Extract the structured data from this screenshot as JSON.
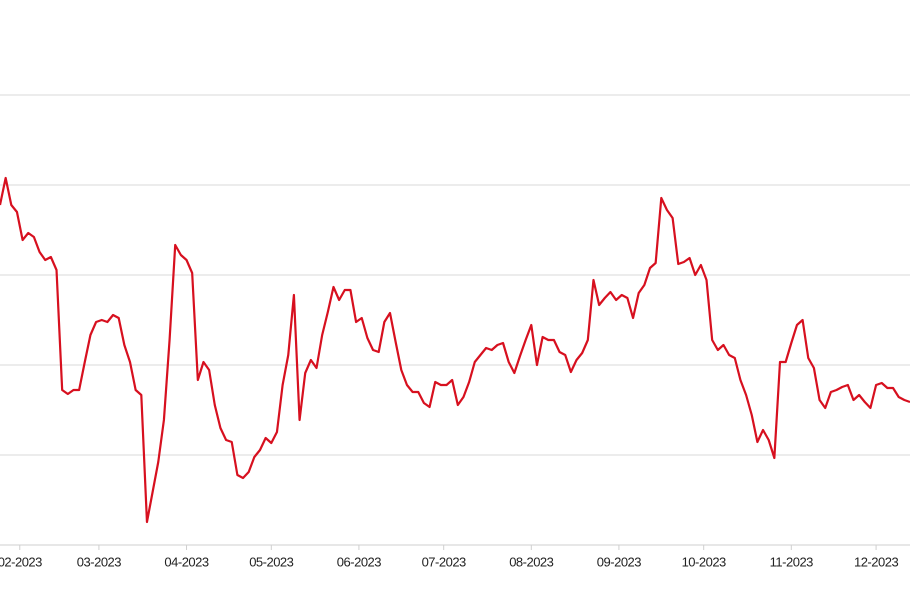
{
  "chart_data": {
    "type": "line",
    "x": [
      25,
      27,
      29,
      31,
      33,
      35,
      37,
      39,
      41,
      43,
      45,
      47,
      49,
      51,
      53,
      55,
      57,
      59,
      61,
      63,
      65,
      67,
      69,
      71,
      73,
      75,
      77,
      79,
      81,
      83,
      85,
      87,
      89,
      91,
      93,
      95,
      97,
      99,
      101,
      103,
      105,
      107,
      109,
      111,
      113,
      115,
      117,
      119,
      121,
      123,
      125,
      127,
      129,
      131,
      133,
      135,
      137,
      139,
      141,
      143,
      145,
      147,
      149,
      151,
      153,
      155,
      157,
      159,
      161,
      163,
      165,
      167,
      169,
      171,
      173,
      175,
      177,
      179,
      181,
      183,
      185,
      187,
      189,
      191,
      193,
      195,
      197,
      199,
      201,
      203,
      205,
      207,
      209,
      211,
      213,
      215,
      217,
      219,
      221,
      223,
      225,
      227,
      229,
      231,
      233,
      235,
      237,
      239,
      241,
      243,
      245,
      247,
      249,
      251,
      253,
      255,
      257,
      259,
      261,
      263,
      265,
      267,
      269,
      271,
      273,
      275,
      277,
      279,
      281,
      283,
      285,
      287,
      289,
      291,
      293,
      295,
      297,
      299,
      301,
      303,
      305,
      307,
      309,
      311,
      313,
      315,
      317,
      319,
      321,
      323,
      325,
      327,
      329,
      331,
      333,
      335,
      337,
      339,
      341,
      343,
      345,
      347
    ],
    "values": [
      340,
      367,
      340,
      333,
      305,
      312,
      308,
      293,
      285,
      288,
      275,
      155,
      151,
      155,
      155,
      183,
      210,
      223,
      225,
      223,
      230,
      227,
      200,
      183,
      155,
      150,
      23,
      53,
      83,
      125,
      205,
      300,
      290,
      285,
      272,
      165,
      183,
      175,
      140,
      117,
      105,
      103,
      70,
      67,
      73,
      88,
      95,
      107,
      102,
      113,
      160,
      190,
      250,
      125,
      172,
      185,
      177,
      210,
      233,
      258,
      245,
      255,
      255,
      223,
      227,
      207,
      195,
      193,
      223,
      232,
      203,
      175,
      160,
      153,
      153,
      142,
      138,
      163,
      160,
      160,
      165,
      140,
      148,
      163,
      183,
      190,
      197,
      195,
      200,
      202,
      183,
      172,
      189,
      205,
      220,
      180,
      208,
      205,
      205,
      193,
      190,
      173,
      185,
      192,
      205,
      265,
      240,
      247,
      253,
      245,
      250,
      247,
      227,
      252,
      260,
      277,
      282,
      347,
      335,
      327,
      281,
      283,
      287,
      270,
      280,
      265,
      205,
      195,
      200,
      190,
      187,
      165,
      150,
      130,
      103,
      115,
      105,
      87,
      183,
      183,
      202,
      220,
      225,
      187,
      177,
      145,
      137,
      153,
      155,
      158,
      160,
      145,
      150,
      143,
      137,
      160,
      162,
      157,
      157,
      148,
      145,
      143
    ],
    "color": "#d7101f",
    "xlim": [
      25,
      347
    ],
    "xticks": [
      {
        "value": 32,
        "label": "02-2023"
      },
      {
        "value": 60,
        "label": "03-2023"
      },
      {
        "value": 91,
        "label": "04-2023"
      },
      {
        "value": 121,
        "label": "05-2023"
      },
      {
        "value": 152,
        "label": "06-2023"
      },
      {
        "value": 182,
        "label": "07-2023"
      },
      {
        "value": 213,
        "label": "08-2023"
      },
      {
        "value": 244,
        "label": "09-2023"
      },
      {
        "value": 274,
        "label": "10-2023"
      },
      {
        "value": 305,
        "label": "11-2023"
      },
      {
        "value": 335,
        "label": "12-2023"
      }
    ],
    "ylim": [
      0,
      545
    ],
    "yticks": [
      90,
      180,
      270,
      360,
      450
    ],
    "grid": true
  }
}
